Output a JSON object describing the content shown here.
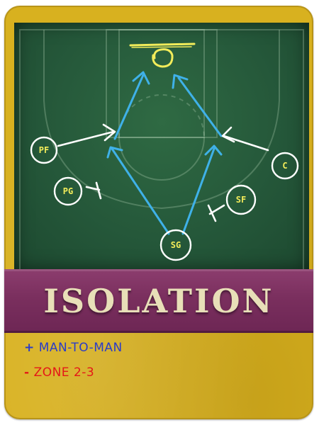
{
  "title": "ISOLATION",
  "players": {
    "pf": "PF",
    "pg": "PG",
    "sg": "SG",
    "sf": "SF",
    "c": "C"
  },
  "notes": {
    "plus_symbol": "+",
    "plus_text": "MAN-TO-MAN",
    "minus_symbol": "-",
    "minus_text": "ZONE 2-3"
  },
  "colors": {
    "card": "#d8b11f",
    "board": "#25583a",
    "banner": "#7a2f5e",
    "chalk_blue": "#3fb1e8",
    "chalk_white": "#ffffff",
    "chalk_yellow": "#f2ec5a",
    "plus_note": "#2a3cc8",
    "minus_note": "#e41818"
  }
}
